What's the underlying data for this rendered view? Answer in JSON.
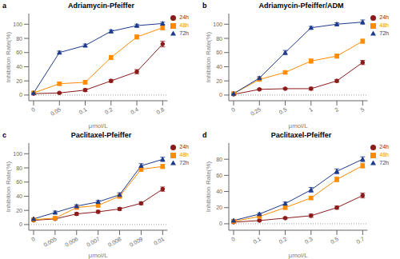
{
  "chart_data": [
    {
      "type": "line",
      "title": "Adriamycin-Pfeiffer",
      "annotations": [
        "a"
      ],
      "xlabel": "μmol/L",
      "ylabel": "Inhibition Rate(%)",
      "categories": [
        "0",
        "0.05",
        "0.1",
        "0.2",
        "0.4",
        "0.8"
      ],
      "ylim": [
        -8,
        115
      ],
      "yticks": [
        0,
        20,
        40,
        60,
        80,
        100
      ],
      "grid": false,
      "legend": "upper right",
      "hline": 0,
      "series": [
        {
          "name": "24h",
          "color": "#8B1A1A",
          "marker": "circle",
          "values": [
            2,
            3,
            7,
            20,
            33,
            72
          ],
          "yerr": [
            1,
            1,
            2,
            2,
            3,
            4
          ]
        },
        {
          "name": "48h",
          "color": "#FF8C00",
          "marker": "square",
          "values": [
            3,
            16,
            18,
            53,
            82,
            95
          ],
          "yerr": [
            1,
            2,
            2,
            3,
            3,
            3
          ]
        },
        {
          "name": "72h",
          "color": "#1E3A8A",
          "marker": "triangle",
          "values": [
            3,
            60,
            70,
            90,
            98,
            101
          ],
          "yerr": [
            1,
            2,
            2,
            2,
            2,
            2
          ]
        }
      ]
    },
    {
      "type": "line",
      "title": "Adriamycin-Pfeiffer/ADM",
      "annotations": [
        "b"
      ],
      "xlabel": "μmol/L",
      "ylabel": "Inhibition Rate(%)",
      "categories": [
        "0",
        "0.25",
        "0.5",
        "1",
        "2",
        "5"
      ],
      "ylim": [
        -8,
        115
      ],
      "yticks": [
        0,
        20,
        40,
        60,
        80,
        100
      ],
      "grid": false,
      "legend": "upper right",
      "hline": 0,
      "series": [
        {
          "name": "24h",
          "color": "#8B1A1A",
          "marker": "circle",
          "values": [
            1,
            8,
            9,
            9,
            20,
            46
          ],
          "yerr": [
            1,
            1,
            1,
            2,
            2,
            3
          ]
        },
        {
          "name": "48h",
          "color": "#FF8C00",
          "marker": "square",
          "values": [
            2,
            22,
            32,
            48,
            55,
            76
          ],
          "yerr": [
            1,
            2,
            2,
            3,
            3,
            3
          ]
        },
        {
          "name": "72h",
          "color": "#1E3A8A",
          "marker": "triangle",
          "values": [
            2,
            24,
            60,
            95,
            100,
            103
          ],
          "yerr": [
            1,
            2,
            3,
            2,
            2,
            3
          ]
        }
      ]
    },
    {
      "type": "line",
      "title": "Paclitaxel-Pfeiffer",
      "annotations": [
        "c"
      ],
      "xlabel": "μmol/L",
      "ylabel": "Inhibition Rate(%)",
      "categories": [
        "0",
        "0.005",
        "0.006",
        "0.007",
        "0.008",
        "0.009",
        "0.01"
      ],
      "ylim": [
        -8,
        115
      ],
      "yticks": [
        0,
        20,
        40,
        60,
        80,
        100
      ],
      "grid": false,
      "legend": "upper right",
      "hline": 0,
      "series": [
        {
          "name": "24h",
          "color": "#8B1A1A",
          "marker": "circle",
          "values": [
            6,
            8,
            15,
            18,
            22,
            30,
            50
          ],
          "yerr": [
            1,
            1,
            2,
            2,
            2,
            2,
            3
          ]
        },
        {
          "name": "48h",
          "color": "#FF8C00",
          "marker": "square",
          "values": [
            7,
            9,
            24,
            27,
            40,
            78,
            82
          ],
          "yerr": [
            1,
            1,
            2,
            2,
            3,
            3,
            3
          ]
        },
        {
          "name": "72h",
          "color": "#1E3A8A",
          "marker": "triangle",
          "values": [
            8,
            17,
            26,
            32,
            42,
            83,
            92
          ],
          "yerr": [
            1,
            2,
            2,
            2,
            3,
            3,
            3
          ]
        }
      ]
    },
    {
      "type": "line",
      "title": "Paclitaxel-Pfeiffer",
      "annotations": [
        "d"
      ],
      "xlabel": "μmol/L",
      "ylabel": "Inhibition Rate(%)",
      "categories": [
        "0",
        "0.1",
        "0.2",
        "0.3",
        "0.5",
        "0.7"
      ],
      "ylim": [
        -8,
        100
      ],
      "yticks": [
        0,
        20,
        40,
        60,
        80
      ],
      "grid": false,
      "legend": "upper right",
      "hline": 0,
      "series": [
        {
          "name": "24h",
          "color": "#8B1A1A",
          "marker": "circle",
          "values": [
            2,
            4,
            7,
            10,
            20,
            35
          ],
          "yerr": [
            1,
            1,
            1,
            2,
            2,
            3
          ]
        },
        {
          "name": "48h",
          "color": "#FF8C00",
          "marker": "square",
          "values": [
            3,
            9,
            20,
            32,
            55,
            72
          ],
          "yerr": [
            1,
            1,
            2,
            2,
            3,
            3
          ]
        },
        {
          "name": "72h",
          "color": "#1E3A8A",
          "marker": "triangle",
          "values": [
            4,
            12,
            25,
            42,
            65,
            80
          ],
          "yerr": [
            1,
            1,
            2,
            3,
            3,
            3
          ]
        }
      ]
    }
  ]
}
